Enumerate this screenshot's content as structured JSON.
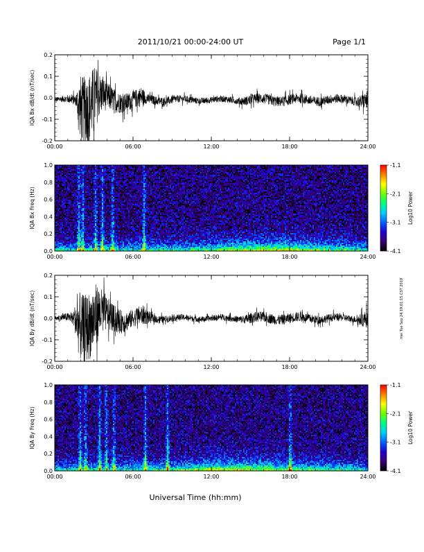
{
  "header": {
    "title": "2011/10/21   00:00-24:00 UT",
    "page": "Page 1/1"
  },
  "footer": {
    "xlabel": "Universal Time (hh:mm)",
    "stamp": "mei Tue Sep 24 19:01:15 CST 2019"
  },
  "chart_data": [
    {
      "type": "line",
      "ylabel": "IQA Bx dB/dt (nT/sec)",
      "ylim": [
        -0.2,
        0.2
      ],
      "yticks": [
        "0.2",
        "0.1",
        "0.0",
        "-0.1",
        "-0.2"
      ],
      "xticks": [
        "00:00",
        "06:00",
        "12:00",
        "18:00",
        "24:00"
      ],
      "xlim_hours": [
        0,
        24
      ],
      "envelope": {
        "x_hours": [
          0,
          1.6,
          2.0,
          3.0,
          3.5,
          4.0,
          4.5,
          5.0,
          6.0,
          6.7,
          7.0,
          8.0,
          10.0,
          12.0,
          14.0,
          15.0,
          18.0,
          20.0,
          23.0,
          23.9,
          24.0
        ],
        "amplitude": [
          0.012,
          0.03,
          0.2,
          0.2,
          0.12,
          0.08,
          0.07,
          0.06,
          0.05,
          0.06,
          0.03,
          0.025,
          0.02,
          0.018,
          0.02,
          0.03,
          0.03,
          0.028,
          0.025,
          0.05,
          0.06
        ]
      },
      "baseline": -0.01
    },
    {
      "type": "heatmap",
      "ylabel": "IQA Bx Freq (Hz)",
      "ylim": [
        0.0,
        1.0
      ],
      "yticks": [
        "1.0",
        "0.8",
        "0.6",
        "0.4",
        "0.2",
        "0.0"
      ],
      "xticks": [
        "00:00",
        "06:00",
        "12:00",
        "18:00",
        "24:00"
      ],
      "xlim_hours": [
        0,
        24
      ],
      "colorbar": {
        "label": "Log10 Power",
        "range": [
          -4.1,
          -1.1
        ],
        "ticks": [
          "-1.1",
          "-2.1",
          "-3.1",
          "-4.1"
        ],
        "colors": [
          "#000000",
          "#3a0070",
          "#2000d0",
          "#0060ff",
          "#00d0ff",
          "#00ff80",
          "#70ff00",
          "#ffff00",
          "#ff8000",
          "#ff0000"
        ]
      },
      "bursts_hours": [
        1.8,
        2.1,
        3.1,
        3.6,
        4.4,
        6.8
      ],
      "band_center_hours": 16.5,
      "background_log_power": -3.7
    },
    {
      "type": "line",
      "ylabel": "IQA By dB/dt (nT/sec)",
      "ylim": [
        -0.2,
        0.2
      ],
      "yticks": [
        "0.2",
        "0.1",
        "0.0",
        "-0.1",
        "-0.2"
      ],
      "xticks": [
        "00:00",
        "06:00",
        "12:00",
        "18:00",
        "24:00"
      ],
      "xlim_hours": [
        0,
        24
      ],
      "envelope": {
        "x_hours": [
          0,
          1.4,
          1.9,
          3.0,
          3.5,
          4.0,
          4.5,
          5.0,
          6.0,
          6.7,
          7.5,
          8.5,
          10.0,
          12.0,
          14.0,
          15.0,
          18.0,
          20.0,
          23.0,
          23.9,
          24.0
        ],
        "amplitude": [
          0.012,
          0.03,
          0.2,
          0.2,
          0.14,
          0.1,
          0.08,
          0.07,
          0.05,
          0.06,
          0.025,
          0.02,
          0.018,
          0.016,
          0.02,
          0.03,
          0.03,
          0.025,
          0.02,
          0.05,
          0.06
        ]
      },
      "baseline": 0.0
    },
    {
      "type": "heatmap",
      "ylabel": "IQA By Freq (Hz)",
      "ylim": [
        0.0,
        1.0
      ],
      "yticks": [
        "1.0",
        "0.8",
        "0.6",
        "0.4",
        "0.2",
        "0.0"
      ],
      "xticks": [
        "00:00",
        "06:00",
        "12:00",
        "18:00",
        "24:00"
      ],
      "xlim_hours": [
        0,
        24
      ],
      "colorbar": {
        "label": "Log10 Power",
        "range": [
          -4.1,
          -1.1
        ],
        "ticks": [
          "-1.1",
          "-2.1",
          "-3.1",
          "-4.1"
        ],
        "colors": [
          "#000000",
          "#3a0070",
          "#2000d0",
          "#0060ff",
          "#00d0ff",
          "#00ff80",
          "#70ff00",
          "#ffff00",
          "#ff8000",
          "#ff0000"
        ]
      },
      "bursts_hours": [
        1.9,
        2.3,
        3.4,
        3.9,
        4.5,
        6.9,
        8.6,
        18.0
      ],
      "band_center_hours": 14.0,
      "background_log_power": -3.7
    }
  ]
}
